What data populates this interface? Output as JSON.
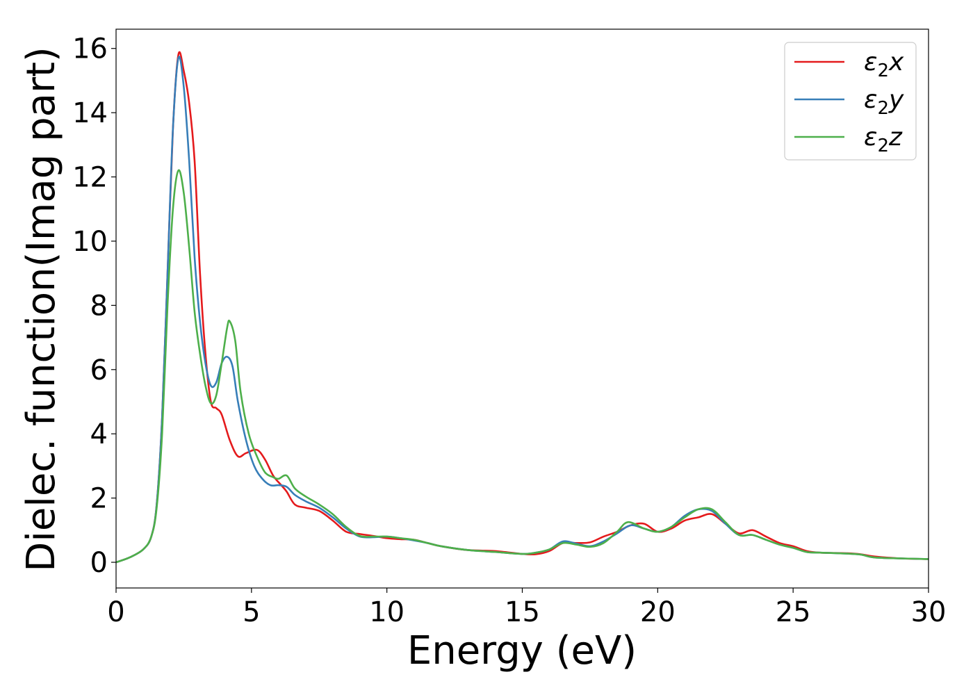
{
  "chart_data": {
    "type": "line",
    "title": "",
    "xlabel": "Energy (eV)",
    "ylabel": "Dielec. function(Imag part)",
    "xlim": [
      0,
      30
    ],
    "ylim": [
      -0.8,
      16.6
    ],
    "xticks": [
      0,
      5,
      10,
      15,
      20,
      25,
      30
    ],
    "yticks": [
      0,
      2,
      4,
      6,
      8,
      10,
      12,
      14,
      16
    ],
    "grid": false,
    "legend_position": "top-right",
    "series": [
      {
        "name": "ε₂x",
        "legend": {
          "base": "ε",
          "sub": "2",
          "tail": "x"
        },
        "color": "#e41a1c",
        "points": [
          [
            0,
            0
          ],
          [
            0.5,
            0.15
          ],
          [
            1.0,
            0.4
          ],
          [
            1.3,
            0.8
          ],
          [
            1.5,
            1.8
          ],
          [
            1.7,
            4.5
          ],
          [
            1.9,
            9.0
          ],
          [
            2.1,
            13.5
          ],
          [
            2.3,
            15.8
          ],
          [
            2.5,
            15.3
          ],
          [
            2.7,
            14.3
          ],
          [
            2.9,
            12.5
          ],
          [
            3.1,
            9.0
          ],
          [
            3.3,
            6.5
          ],
          [
            3.5,
            5.0
          ],
          [
            3.7,
            4.8
          ],
          [
            3.9,
            4.6
          ],
          [
            4.2,
            3.8
          ],
          [
            4.5,
            3.3
          ],
          [
            4.8,
            3.4
          ],
          [
            5.2,
            3.5
          ],
          [
            5.5,
            3.2
          ],
          [
            5.8,
            2.7
          ],
          [
            6.1,
            2.4
          ],
          [
            6.3,
            2.2
          ],
          [
            6.6,
            1.8
          ],
          [
            7.0,
            1.7
          ],
          [
            7.5,
            1.6
          ],
          [
            8.0,
            1.3
          ],
          [
            8.5,
            0.95
          ],
          [
            9.0,
            0.88
          ],
          [
            9.5,
            0.82
          ],
          [
            10.0,
            0.75
          ],
          [
            10.5,
            0.72
          ],
          [
            11.0,
            0.7
          ],
          [
            11.5,
            0.6
          ],
          [
            12.0,
            0.5
          ],
          [
            13.0,
            0.38
          ],
          [
            14.0,
            0.35
          ],
          [
            15.0,
            0.26
          ],
          [
            15.5,
            0.25
          ],
          [
            16.0,
            0.35
          ],
          [
            16.5,
            0.6
          ],
          [
            17.0,
            0.6
          ],
          [
            17.5,
            0.62
          ],
          [
            18.0,
            0.8
          ],
          [
            18.5,
            0.95
          ],
          [
            19.0,
            1.15
          ],
          [
            19.5,
            1.2
          ],
          [
            20.0,
            0.95
          ],
          [
            20.5,
            1.05
          ],
          [
            21.0,
            1.3
          ],
          [
            21.5,
            1.4
          ],
          [
            22.0,
            1.5
          ],
          [
            22.5,
            1.2
          ],
          [
            23.0,
            0.9
          ],
          [
            23.5,
            1.0
          ],
          [
            24.0,
            0.8
          ],
          [
            24.5,
            0.6
          ],
          [
            25.0,
            0.5
          ],
          [
            25.5,
            0.35
          ],
          [
            26.0,
            0.3
          ],
          [
            27.0,
            0.28
          ],
          [
            27.5,
            0.25
          ],
          [
            28.0,
            0.18
          ],
          [
            29.0,
            0.12
          ],
          [
            30.0,
            0.1
          ]
        ]
      },
      {
        "name": "ε₂y",
        "legend": {
          "base": "ε",
          "sub": "2",
          "tail": "y"
        },
        "color": "#377eb8",
        "points": [
          [
            0,
            0
          ],
          [
            0.5,
            0.15
          ],
          [
            1.0,
            0.4
          ],
          [
            1.3,
            0.8
          ],
          [
            1.5,
            1.8
          ],
          [
            1.7,
            4.5
          ],
          [
            1.9,
            9.0
          ],
          [
            2.1,
            13.5
          ],
          [
            2.3,
            15.7
          ],
          [
            2.5,
            14.8
          ],
          [
            2.7,
            12.5
          ],
          [
            2.9,
            9.5
          ],
          [
            3.1,
            7.5
          ],
          [
            3.3,
            6.2
          ],
          [
            3.5,
            5.5
          ],
          [
            3.7,
            5.6
          ],
          [
            3.9,
            6.2
          ],
          [
            4.1,
            6.4
          ],
          [
            4.3,
            6.1
          ],
          [
            4.5,
            5.0
          ],
          [
            4.8,
            3.8
          ],
          [
            5.1,
            3.0
          ],
          [
            5.4,
            2.6
          ],
          [
            5.7,
            2.4
          ],
          [
            6.0,
            2.4
          ],
          [
            6.3,
            2.35
          ],
          [
            6.6,
            2.1
          ],
          [
            7.0,
            1.9
          ],
          [
            7.5,
            1.7
          ],
          [
            8.0,
            1.4
          ],
          [
            8.5,
            1.05
          ],
          [
            9.0,
            0.8
          ],
          [
            9.5,
            0.78
          ],
          [
            10.0,
            0.8
          ],
          [
            10.5,
            0.75
          ],
          [
            11.0,
            0.68
          ],
          [
            11.5,
            0.6
          ],
          [
            12.0,
            0.5
          ],
          [
            13.0,
            0.38
          ],
          [
            14.0,
            0.32
          ],
          [
            15.0,
            0.26
          ],
          [
            15.5,
            0.3
          ],
          [
            16.0,
            0.4
          ],
          [
            16.5,
            0.65
          ],
          [
            17.0,
            0.58
          ],
          [
            17.5,
            0.5
          ],
          [
            18.0,
            0.65
          ],
          [
            18.5,
            0.9
          ],
          [
            19.0,
            1.15
          ],
          [
            19.5,
            1.05
          ],
          [
            20.0,
            0.95
          ],
          [
            20.5,
            1.1
          ],
          [
            21.0,
            1.45
          ],
          [
            21.5,
            1.65
          ],
          [
            22.0,
            1.6
          ],
          [
            22.5,
            1.2
          ],
          [
            23.0,
            0.85
          ],
          [
            23.5,
            0.85
          ],
          [
            24.0,
            0.7
          ],
          [
            24.5,
            0.55
          ],
          [
            25.0,
            0.45
          ],
          [
            25.5,
            0.32
          ],
          [
            26.0,
            0.3
          ],
          [
            27.0,
            0.27
          ],
          [
            27.5,
            0.24
          ],
          [
            28.0,
            0.15
          ],
          [
            29.0,
            0.12
          ],
          [
            30.0,
            0.1
          ]
        ]
      },
      {
        "name": "ε₂z",
        "legend": {
          "base": "ε",
          "sub": "2",
          "tail": "z"
        },
        "color": "#4daf4a",
        "points": [
          [
            0,
            0
          ],
          [
            0.5,
            0.15
          ],
          [
            1.0,
            0.4
          ],
          [
            1.3,
            0.8
          ],
          [
            1.5,
            1.7
          ],
          [
            1.7,
            4.0
          ],
          [
            1.9,
            8.0
          ],
          [
            2.1,
            11.0
          ],
          [
            2.3,
            12.2
          ],
          [
            2.5,
            11.5
          ],
          [
            2.7,
            9.8
          ],
          [
            2.9,
            7.8
          ],
          [
            3.1,
            6.5
          ],
          [
            3.3,
            5.5
          ],
          [
            3.5,
            4.95
          ],
          [
            3.7,
            5.2
          ],
          [
            3.9,
            6.2
          ],
          [
            4.1,
            7.3
          ],
          [
            4.2,
            7.5
          ],
          [
            4.4,
            6.9
          ],
          [
            4.6,
            5.3
          ],
          [
            4.9,
            4.0
          ],
          [
            5.2,
            3.3
          ],
          [
            5.5,
            2.8
          ],
          [
            5.8,
            2.65
          ],
          [
            6.0,
            2.6
          ],
          [
            6.3,
            2.7
          ],
          [
            6.6,
            2.3
          ],
          [
            7.0,
            2.05
          ],
          [
            7.5,
            1.8
          ],
          [
            8.0,
            1.5
          ],
          [
            8.5,
            1.1
          ],
          [
            9.0,
            0.82
          ],
          [
            9.5,
            0.8
          ],
          [
            10.0,
            0.8
          ],
          [
            10.5,
            0.75
          ],
          [
            11.0,
            0.7
          ],
          [
            11.5,
            0.6
          ],
          [
            12.0,
            0.5
          ],
          [
            13.0,
            0.38
          ],
          [
            14.0,
            0.32
          ],
          [
            15.0,
            0.26
          ],
          [
            15.5,
            0.3
          ],
          [
            16.0,
            0.4
          ],
          [
            16.5,
            0.6
          ],
          [
            17.0,
            0.55
          ],
          [
            17.5,
            0.48
          ],
          [
            18.0,
            0.6
          ],
          [
            18.5,
            0.95
          ],
          [
            18.9,
            1.25
          ],
          [
            19.5,
            1.05
          ],
          [
            20.0,
            0.95
          ],
          [
            20.5,
            1.1
          ],
          [
            21.0,
            1.4
          ],
          [
            21.5,
            1.65
          ],
          [
            22.0,
            1.65
          ],
          [
            22.5,
            1.25
          ],
          [
            23.0,
            0.85
          ],
          [
            23.5,
            0.85
          ],
          [
            24.0,
            0.7
          ],
          [
            24.5,
            0.55
          ],
          [
            25.0,
            0.45
          ],
          [
            25.5,
            0.32
          ],
          [
            26.0,
            0.3
          ],
          [
            27.0,
            0.27
          ],
          [
            27.5,
            0.24
          ],
          [
            28.0,
            0.15
          ],
          [
            29.0,
            0.12
          ],
          [
            30.0,
            0.1
          ]
        ]
      }
    ]
  }
}
